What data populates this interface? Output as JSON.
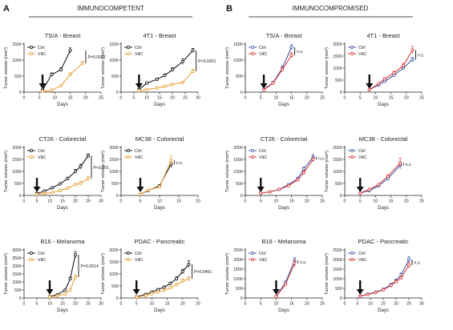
{
  "figure": {
    "panels": [
      {
        "letter": "A",
        "title": "IMMUNOCOMPETENT"
      },
      {
        "letter": "B",
        "title": "IMMUNOCOMPROMISED"
      }
    ],
    "xlabel": "Days",
    "ylabel": "Tumor volume (mm³)"
  },
  "chart_data": [
    {
      "type": "line",
      "title": "TS/A - Breast",
      "xlabel": "Days",
      "ylabel": "Tumor volume (mm³)",
      "xlim": [
        0,
        25
      ],
      "xticks": [
        0,
        5,
        10,
        15,
        20,
        25
      ],
      "ylim": [
        0,
        1500
      ],
      "yticks": [
        0,
        500,
        1000,
        1500
      ],
      "legend": "top-left",
      "annotation": "P=0.0007",
      "arrow_day": 6,
      "series": [
        {
          "name": "Ctrl",
          "color": "#1a1a1a",
          "x": [
            6,
            9,
            12,
            15
          ],
          "y": [
            60,
            550,
            700,
            1300
          ],
          "err": [
            10,
            50,
            60,
            80
          ]
        },
        {
          "name": "VitC",
          "color": "#e8a33d",
          "x": [
            6,
            9,
            12,
            15,
            19
          ],
          "y": [
            20,
            60,
            200,
            550,
            900
          ],
          "err": [
            5,
            10,
            30,
            50,
            60
          ]
        }
      ]
    },
    {
      "type": "line",
      "title": "4T1 - Breast",
      "xlabel": "Days",
      "ylabel": "Tumor volume (mm³)",
      "xlim": [
        0,
        30
      ],
      "xticks": [
        0,
        5,
        10,
        15,
        20,
        25,
        30
      ],
      "ylim": [
        0,
        1500
      ],
      "yticks": [
        0,
        500,
        1000,
        1500
      ],
      "legend": "top-left",
      "annotation": "P<0.0001",
      "arrow_day": 7,
      "series": [
        {
          "name": "Ctrl",
          "color": "#1a1a1a",
          "x": [
            7,
            10,
            14,
            17,
            20,
            24,
            28
          ],
          "y": [
            80,
            280,
            400,
            520,
            700,
            950,
            1300
          ],
          "err": [
            10,
            30,
            40,
            50,
            60,
            90,
            60
          ]
        },
        {
          "name": "VitC",
          "color": "#e8a33d",
          "x": [
            7,
            10,
            14,
            17,
            20,
            24,
            28
          ],
          "y": [
            40,
            80,
            130,
            180,
            240,
            300,
            650
          ],
          "err": [
            5,
            15,
            20,
            25,
            30,
            40,
            60
          ]
        }
      ]
    },
    {
      "type": "line",
      "title": "CT26 - Colorectal",
      "xlabel": "Days",
      "ylabel": "Tumor volume (mm³)",
      "xlim": [
        0,
        30
      ],
      "xticks": [
        0,
        5,
        10,
        15,
        20,
        25,
        30
      ],
      "ylim": [
        0,
        2000
      ],
      "yticks": [
        0,
        500,
        1000,
        1500,
        2000
      ],
      "legend": "top-left",
      "annotation": "P<0.001",
      "arrow_day": 5,
      "series": [
        {
          "name": "Ctrl",
          "color": "#1a1a1a",
          "x": [
            5,
            8,
            11,
            14,
            17,
            20,
            22,
            25
          ],
          "y": [
            80,
            180,
            320,
            480,
            700,
            1000,
            1200,
            1650
          ],
          "err": [
            10,
            20,
            30,
            40,
            60,
            80,
            100,
            80
          ]
        },
        {
          "name": "VitC",
          "color": "#e8a33d",
          "x": [
            5,
            8,
            11,
            14,
            17,
            20,
            22,
            25
          ],
          "y": [
            50,
            80,
            120,
            200,
            300,
            450,
            500,
            700
          ],
          "err": [
            5,
            10,
            15,
            30,
            40,
            60,
            80,
            90
          ]
        }
      ]
    },
    {
      "type": "line",
      "title": "MC38 - Colorectal",
      "xlabel": "Days",
      "ylabel": "Tumor volume (mm³)",
      "xlim": [
        0,
        20
      ],
      "xticks": [
        0,
        5,
        10,
        15,
        20
      ],
      "ylim": [
        0,
        2000
      ],
      "yticks": [
        0,
        500,
        1000,
        1500,
        2000
      ],
      "legend": "top-left",
      "annotation": "n.s.",
      "arrow_day": 5,
      "series": [
        {
          "name": "Ctrl",
          "color": "#1a1a1a",
          "x": [
            5,
            7,
            10,
            13
          ],
          "y": [
            50,
            200,
            400,
            1300
          ],
          "err": [
            5,
            20,
            40,
            150
          ]
        },
        {
          "name": "VitC",
          "color": "#e8a33d",
          "x": [
            5,
            7,
            10,
            13
          ],
          "y": [
            50,
            220,
            350,
            1450
          ],
          "err": [
            5,
            20,
            40,
            200
          ]
        }
      ]
    },
    {
      "type": "line",
      "title": "B16 - Melanoma",
      "xlabel": "Days",
      "ylabel": "Tumor volume (mm³)",
      "xlim": [
        0,
        30
      ],
      "xticks": [
        0,
        5,
        10,
        15,
        20,
        25,
        30
      ],
      "ylim": [
        0,
        3000
      ],
      "yticks": [
        0,
        500,
        1000,
        1500,
        2000,
        2500,
        3000
      ],
      "legend": "top-left",
      "annotation": "P=0.0014",
      "arrow_day": 10,
      "series": [
        {
          "name": "Ctrl",
          "color": "#1a1a1a",
          "x": [
            10,
            13,
            16,
            18,
            20
          ],
          "y": [
            100,
            200,
            500,
            1200,
            2700
          ],
          "err": [
            10,
            20,
            40,
            100,
            200
          ]
        },
        {
          "name": "VitC",
          "color": "#e8a33d",
          "x": [
            10,
            13,
            16,
            18,
            20
          ],
          "y": [
            80,
            120,
            250,
            500,
            1300
          ],
          "err": [
            10,
            15,
            30,
            60,
            150
          ]
        }
      ]
    },
    {
      "type": "line",
      "title": "PDAC - Pancreatic",
      "xlabel": "Days",
      "ylabel": "Tumor volume (mm³)",
      "xlim": [
        0,
        25
      ],
      "xticks": [
        0,
        5,
        10,
        15,
        20,
        25
      ],
      "ylim": [
        0,
        2000
      ],
      "yticks": [
        0,
        500,
        1000,
        1500,
        2000
      ],
      "legend": "top-left",
      "annotation": "P=0.0461",
      "arrow_day": 5,
      "series": [
        {
          "name": "Ctrl",
          "color": "#1a1a1a",
          "x": [
            5,
            8,
            10,
            12,
            14,
            16,
            18,
            20,
            22
          ],
          "y": [
            50,
            150,
            250,
            350,
            450,
            600,
            800,
            1100,
            1400
          ],
          "err": [
            10,
            20,
            30,
            40,
            50,
            60,
            80,
            100,
            150
          ]
        },
        {
          "name": "VitC",
          "color": "#e8a33d",
          "x": [
            5,
            8,
            10,
            12,
            14,
            16,
            18,
            20,
            22
          ],
          "y": [
            40,
            100,
            180,
            250,
            320,
            420,
            550,
            700,
            800
          ],
          "err": [
            5,
            15,
            20,
            30,
            40,
            50,
            60,
            80,
            90
          ]
        }
      ]
    },
    {
      "type": "line",
      "title": "TS/A - Breast",
      "xlabel": "Days",
      "ylabel": "Tumor volume (mm³)",
      "xlim": [
        0,
        25
      ],
      "xticks": [
        0,
        5,
        10,
        15,
        20,
        25
      ],
      "ylim": [
        0,
        1500
      ],
      "yticks": [
        0,
        500,
        1000,
        1500
      ],
      "legend": "top-left",
      "annotation": "n.s.",
      "arrow_day": 6,
      "series": [
        {
          "name": "Ctrl",
          "color": "#4a60b0",
          "x": [
            6,
            9,
            12,
            15
          ],
          "y": [
            80,
            300,
            750,
            1400
          ],
          "err": [
            10,
            30,
            60,
            80
          ]
        },
        {
          "name": "VitC",
          "color": "#d94040",
          "x": [
            6,
            9,
            12,
            15
          ],
          "y": [
            70,
            280,
            700,
            1150
          ],
          "err": [
            10,
            30,
            60,
            80
          ]
        }
      ]
    },
    {
      "type": "line",
      "title": "4T1 - Breast",
      "xlabel": "Days",
      "ylabel": "Tumor volume (mm³)",
      "xlim": [
        0,
        25
      ],
      "xticks": [
        0,
        5,
        10,
        15,
        20,
        25
      ],
      "ylim": [
        0,
        2000
      ],
      "yticks": [
        0,
        500,
        1000,
        1500,
        2000
      ],
      "legend": "top-left",
      "annotation": "n.s.",
      "arrow_day": 8,
      "series": [
        {
          "name": "Ctrl",
          "color": "#4a60b0",
          "x": [
            8,
            11,
            13,
            16,
            19,
            22
          ],
          "y": [
            100,
            300,
            450,
            700,
            1000,
            1350
          ],
          "err": [
            10,
            30,
            40,
            60,
            80,
            100
          ]
        },
        {
          "name": "VitC",
          "color": "#d94040",
          "x": [
            8,
            11,
            13,
            16,
            19,
            22
          ],
          "y": [
            100,
            350,
            550,
            800,
            1100,
            1750
          ],
          "err": [
            10,
            40,
            50,
            70,
            100,
            150
          ]
        }
      ]
    },
    {
      "type": "line",
      "title": "CT26 - Colorectal",
      "xlabel": "Days",
      "ylabel": "Tumor volume (mm³)",
      "xlim": [
        0,
        25
      ],
      "xticks": [
        0,
        5,
        10,
        15,
        20,
        25
      ],
      "ylim": [
        0,
        2000
      ],
      "yticks": [
        0,
        500,
        1000,
        1500,
        2000
      ],
      "legend": "top-left",
      "annotation": "n.s.",
      "arrow_day": 5,
      "series": [
        {
          "name": "Ctrl",
          "color": "#4a60b0",
          "x": [
            5,
            8,
            11,
            14,
            17,
            19,
            22
          ],
          "y": [
            100,
            150,
            250,
            450,
            700,
            1100,
            1600
          ],
          "err": [
            10,
            15,
            20,
            40,
            60,
            80,
            100
          ]
        },
        {
          "name": "VitC",
          "color": "#d94040",
          "x": [
            5,
            8,
            11,
            14,
            17,
            19,
            22
          ],
          "y": [
            100,
            150,
            250,
            400,
            650,
            950,
            1500
          ],
          "err": [
            10,
            15,
            20,
            40,
            60,
            80,
            100
          ]
        }
      ]
    },
    {
      "type": "line",
      "title": "MC38 - Colorectal",
      "xlabel": "Days",
      "ylabel": "Tumor volume (mm³)",
      "xlim": [
        0,
        25
      ],
      "xticks": [
        0,
        5,
        10,
        15,
        20,
        25
      ],
      "ylim": [
        0,
        2000
      ],
      "yticks": [
        0,
        500,
        1000,
        1500,
        2000
      ],
      "legend": "top-left",
      "annotation": "n.s.",
      "arrow_day": 5,
      "series": [
        {
          "name": "Ctrl",
          "color": "#4a60b0",
          "x": [
            5,
            8,
            11,
            14,
            18
          ],
          "y": [
            100,
            200,
            400,
            700,
            1250
          ],
          "err": [
            10,
            20,
            40,
            60,
            150
          ]
        },
        {
          "name": "VitC",
          "color": "#d94040",
          "x": [
            5,
            8,
            11,
            14,
            18
          ],
          "y": [
            100,
            250,
            450,
            800,
            1350
          ],
          "err": [
            10,
            20,
            40,
            60,
            200
          ]
        }
      ]
    },
    {
      "type": "line",
      "title": "B16 - Melanoma",
      "xlabel": "Days",
      "ylabel": "Tumor volume (mm³)",
      "xlim": [
        0,
        25
      ],
      "xticks": [
        0,
        5,
        10,
        15,
        20,
        25
      ],
      "ylim": [
        0,
        2500
      ],
      "yticks": [
        0,
        500,
        1000,
        1500,
        2000,
        2500
      ],
      "legend": "top-left",
      "annotation": "n.s.",
      "arrow_day": 10,
      "series": [
        {
          "name": "Ctrl",
          "color": "#4a60b0",
          "x": [
            10,
            13,
            16
          ],
          "y": [
            80,
            800,
            1950
          ],
          "err": [
            10,
            80,
            150
          ]
        },
        {
          "name": "VitC",
          "color": "#d94040",
          "x": [
            10,
            13,
            16
          ],
          "y": [
            70,
            700,
            1800
          ],
          "err": [
            10,
            80,
            200
          ]
        }
      ]
    },
    {
      "type": "line",
      "title": "PDAC - Pancreatic",
      "xlabel": "Days",
      "ylabel": "Tumor volume (mm³)",
      "xlim": [
        0,
        30
      ],
      "xticks": [
        0,
        5,
        10,
        15,
        20,
        25,
        30
      ],
      "ylim": [
        0,
        2500
      ],
      "yticks": [
        0,
        500,
        1000,
        1500,
        2000,
        2500
      ],
      "legend": "top-left",
      "annotation": "n.s.",
      "arrow_day": 6,
      "series": [
        {
          "name": "Ctrl",
          "color": "#4a60b0",
          "x": [
            6,
            9,
            12,
            15,
            18,
            20,
            22,
            25
          ],
          "y": [
            100,
            200,
            300,
            450,
            700,
            900,
            1200,
            2000
          ],
          "err": [
            10,
            20,
            30,
            40,
            60,
            80,
            100,
            150
          ]
        },
        {
          "name": "VitC",
          "color": "#d94040",
          "x": [
            6,
            9,
            12,
            15,
            18,
            20,
            22,
            25
          ],
          "y": [
            90,
            180,
            280,
            420,
            650,
            850,
            1050,
            1700
          ],
          "err": [
            10,
            20,
            30,
            40,
            60,
            80,
            100,
            150
          ]
        }
      ]
    }
  ]
}
